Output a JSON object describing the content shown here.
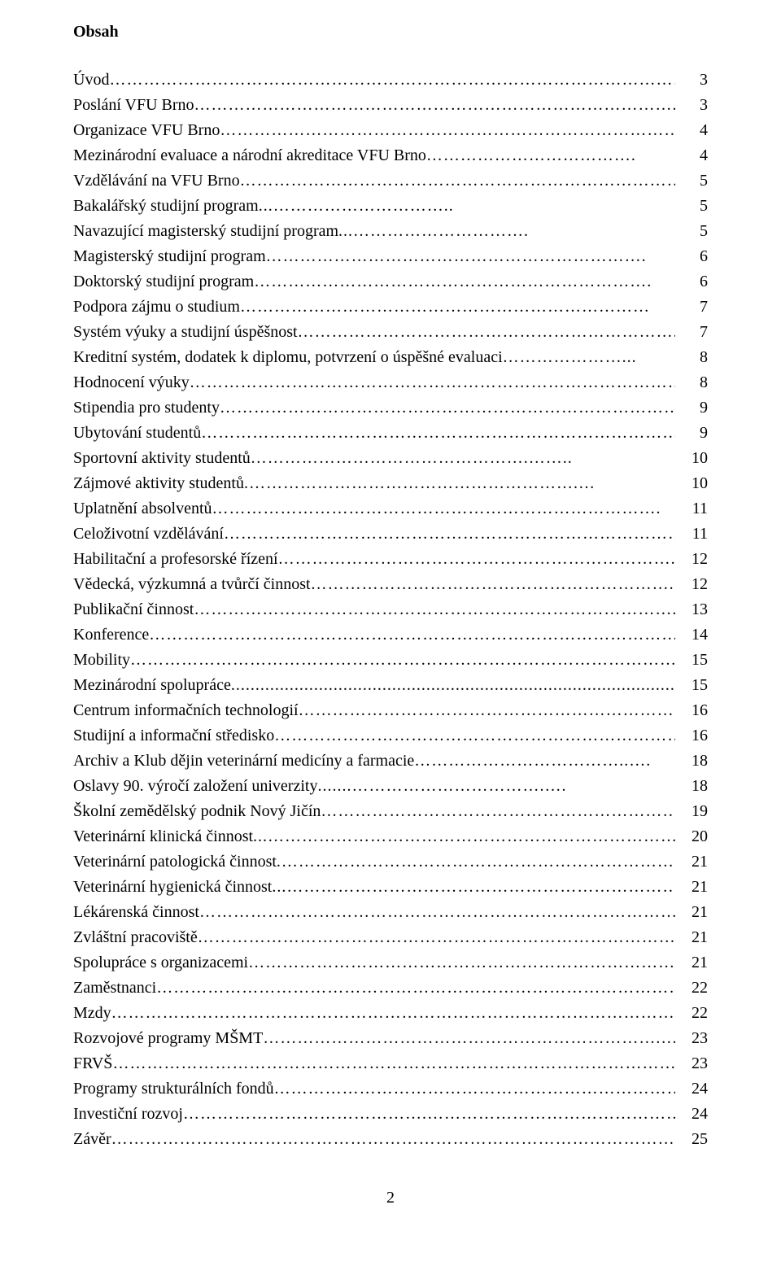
{
  "title": "Obsah",
  "page_number": "2",
  "toc": [
    {
      "label": "Úvod",
      "page": "3",
      "leader": "…………………………………………………………………………………………"
    },
    {
      "label": "Poslání VFU Brno",
      "page": "3",
      "leader": "…………………………………………………………………………..."
    },
    {
      "label": "Organizace VFU Brno",
      "page": "4",
      "leader": "………………………………………………………………………"
    },
    {
      "label": "Mezinárodní evaluace a národní akreditace VFU Brno",
      "page": "4",
      "leader": "………………………………."
    },
    {
      "label": "Vzdělávání na VFU Brno",
      "page": "5",
      "leader": "………………………………………………………………………"
    },
    {
      "label": "Bakalářský studijní program",
      "page": "5",
      "leader": "...………………………….."
    },
    {
      "label": "Navazující magisterský studijní program",
      "page": "5",
      "leader": "...…………………………."
    },
    {
      "label": "Magisterský studijní program",
      "page": "6",
      "leader": "…………………………………………………………."
    },
    {
      "label": "Doktorský studijní program",
      "page": "6",
      "leader": "……………………………………………………………."
    },
    {
      "label": "Podpora zájmu o studium",
      "page": "7",
      "leader": "………………………………………………………………"
    },
    {
      "label": "Systém výuky a studijní úspěšnost",
      "page": "7",
      "leader": "………………………………………………………….."
    },
    {
      "label": "Kreditní systém, dodatek k diplomu, potvrzení o úspěšné evaluaci",
      "page": "8",
      "leader": "…………………..."
    },
    {
      "label": "Hodnocení výuky",
      "page": "8",
      "leader": "………………………………………………………………………………"
    },
    {
      "label": "Stipendia pro studenty",
      "page": "9",
      "leader": "…………………………………………………………………………"
    },
    {
      "label": "Ubytování studentů",
      "page": "9",
      "leader": "…………………………………………………………………………"
    },
    {
      "label": "Sportovní aktivity studentů",
      "page": "10",
      "leader": "………………………………………….…….."
    },
    {
      "label": "Zájmové aktivity studentů",
      "page": "10",
      "leader": ".………………………………………………….…"
    },
    {
      "label": "Uplatnění absolventů",
      "page": "11",
      "leader": "……………………………………………………………………."
    },
    {
      "label": "Celoživotní vzdělávání",
      "page": "11",
      "leader": "………………………………………………………………………"
    },
    {
      "label": "Habilitační a profesorské řízení",
      "page": "12",
      "leader": "……………………………………………………………."
    },
    {
      "label": "Vědecká, výzkumná a tvůrčí činnost",
      "page": "12",
      "leader": "………………………………………………………."
    },
    {
      "label": "Publikační činnost",
      "page": "13",
      "leader": "………………………………………………………………………….."
    },
    {
      "label": "Konference",
      "page": "14",
      "leader": "…………………………………………………………………………………."
    },
    {
      "label": "Mobility",
      "page": "15",
      "leader": "………………………………………………………………………………………."
    },
    {
      "label": "Mezinárodní spolupráce",
      "page": "15",
      "leader": "........................................................................................................."
    },
    {
      "label": "Centrum informačních technologií",
      "page": "16",
      "leader": "…………………………………………………………."
    },
    {
      "label": "Studijní a informační středisko",
      "page": "16",
      "leader": "………………………………………………………………."
    },
    {
      "label": "Archiv a Klub dějin veterinární medicíny a farmacie",
      "page": "18",
      "leader": "………………………………..…."
    },
    {
      "label": "Oslavy 90. výročí založení univerzity",
      "page": "18",
      "leader": ".......…………………………….…."
    },
    {
      "label": "Školní zemědělský podnik Nový Jičín",
      "page": "19",
      "leader": "………………………………………………………"
    },
    {
      "label": "Veterinární klinická činnost",
      "page": "20",
      "leader": "...………………………………………………………………."
    },
    {
      "label": "Veterinární patologická činnost",
      "page": "21",
      "leader": ".………………………………………………………………."
    },
    {
      "label": "Veterinární hygienická činnost",
      "page": "21",
      "leader": "...……………………………………………………………."
    },
    {
      "label": "Lékárenská činnost",
      "page": "21",
      "leader": "…………………………………………………………………………."
    },
    {
      "label": "Zvláštní pracoviště",
      "page": "21",
      "leader": "…………………………………………………………………………."
    },
    {
      "label": "Spolupráce s organizacemi",
      "page": "21",
      "leader": "……………………………………………………………………."
    },
    {
      "label": "Zaměstnanci",
      "page": "22",
      "leader": "……………………………………………………………………………………"
    },
    {
      "label": "Mzdy",
      "page": "22",
      "leader": "…………………………………………………………………………………………..."
    },
    {
      "label": "Rozvojové programy MŠMT",
      "page": "23",
      "leader": "…………………………………………………………….…"
    },
    {
      "label": "FRVŠ",
      "page": "23",
      "leader": "……………………………………………………………………………………………."
    },
    {
      "label": "Programy strukturálních fondů",
      "page": "24",
      "leader": "………………………………………………………………."
    },
    {
      "label": "Investiční rozvoj",
      "page": "24",
      "leader": "…………………………………….……………………………………………."
    },
    {
      "label": "Závěr",
      "page": "25",
      "leader": "……………………………………………………………………………………………."
    }
  ]
}
